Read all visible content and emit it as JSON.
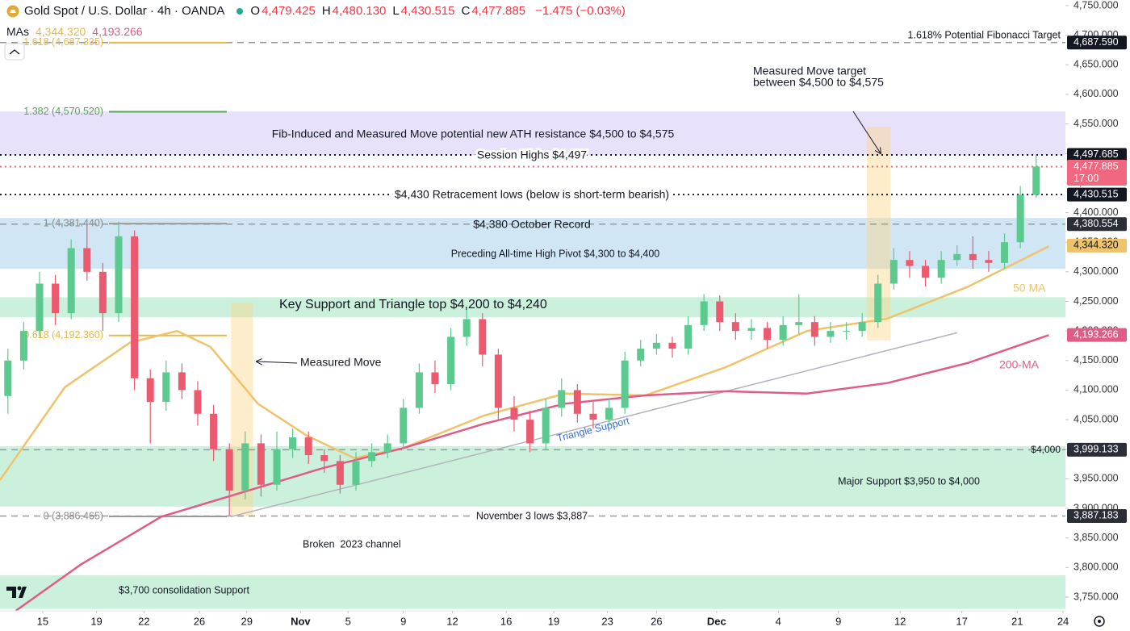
{
  "chart_data": {
    "type": "candlestick",
    "title": "Gold Spot / U.S. Dollar · 4h · OANDA",
    "ohlc_legend": [
      {
        "name": "O",
        "value": 4479.425,
        "label": "4,479.425"
      },
      {
        "name": "H",
        "value": 4480.13,
        "label": "4,480.130"
      },
      {
        "name": "L",
        "value": 4430.515,
        "label": "4,430.515"
      },
      {
        "name": "C",
        "value": 4477.885,
        "label": "4,477.885"
      }
    ],
    "change": {
      "value": -1.475,
      "label": "−1.475 (−0.03%)"
    },
    "ma_legend": {
      "name": "MAs",
      "items": [
        {
          "value": 4344.32,
          "label": "4,344.320",
          "color": "#e8b84a"
        },
        {
          "value": 4193.266,
          "label": "4,193.266",
          "color": "#e05c87"
        }
      ]
    },
    "up_color": "#5cc98e",
    "down_color": "#ec5a70",
    "open": [
      4090,
      4150,
      4200,
      4280,
      4230,
      4340,
      4300,
      4230,
      4360,
      4120,
      4080,
      4130,
      4100,
      4060,
      4000,
      3930,
      4010,
      3940,
      4000,
      4020,
      3990,
      3980,
      3940,
      3980,
      3995,
      4010,
      4070,
      4130,
      4110,
      4190,
      4220,
      4160,
      4070,
      4050,
      4010,
      4070,
      4100,
      4060,
      4050,
      4070,
      4150,
      4170,
      4180,
      4170,
      4210,
      4250,
      4215,
      4200,
      4205,
      4185,
      4210,
      4215,
      4190,
      4200,
      4200,
      4215,
      4280,
      4320,
      4310,
      4290,
      4320,
      4330,
      4320,
      4315,
      4350,
      4430
    ],
    "high": [
      4170,
      4215,
      4300,
      4295,
      4355,
      4381,
      4315,
      4385,
      4370,
      4135,
      4150,
      4145,
      4115,
      4075,
      4010,
      4030,
      4025,
      4030,
      4035,
      4030,
      4000,
      3990,
      3995,
      4010,
      4025,
      4085,
      4145,
      4150,
      4205,
      4240,
      4230,
      4170,
      4090,
      4065,
      4085,
      4120,
      4110,
      4080,
      4085,
      4165,
      4185,
      4195,
      4190,
      4225,
      4262,
      4260,
      4230,
      4220,
      4215,
      4225,
      4262,
      4225,
      4215,
      4215,
      4230,
      4295,
      4340,
      4335,
      4320,
      4335,
      4345,
      4360,
      4335,
      4365,
      4445,
      4498
    ],
    "low": [
      4060,
      4135,
      4190,
      4210,
      4220,
      4285,
      4200,
      4215,
      4100,
      4010,
      4065,
      4085,
      4040,
      3980,
      3887,
      3915,
      3920,
      3930,
      3985,
      3975,
      3960,
      3925,
      3930,
      3970,
      3985,
      4000,
      4060,
      4095,
      4100,
      4175,
      4140,
      4050,
      4030,
      3995,
      4000,
      4055,
      4045,
      4035,
      4040,
      4060,
      4140,
      4160,
      4155,
      4160,
      4200,
      4200,
      4185,
      4185,
      4170,
      4175,
      4195,
      4175,
      4180,
      4185,
      4190,
      4205,
      4270,
      4290,
      4275,
      4280,
      4310,
      4305,
      4300,
      4305,
      4340,
      4425
    ],
    "close": [
      4150,
      4200,
      4280,
      4230,
      4340,
      4300,
      4230,
      4360,
      4120,
      4080,
      4130,
      4100,
      4060,
      4000,
      3930,
      4010,
      3940,
      4000,
      4020,
      3990,
      3980,
      3940,
      3980,
      3995,
      4010,
      4070,
      4130,
      4110,
      4190,
      4220,
      4160,
      4070,
      4050,
      4010,
      4070,
      4100,
      4060,
      4050,
      4070,
      4150,
      4170,
      4180,
      4170,
      4210,
      4250,
      4215,
      4200,
      4205,
      4185,
      4210,
      4215,
      4190,
      4200,
      4200,
      4215,
      4280,
      4320,
      4310,
      4290,
      4320,
      4330,
      4320,
      4315,
      4350,
      4430,
      4478
    ],
    "moving_averages": [
      {
        "name": "50 MA",
        "color": "#eec36a",
        "x": [
          0,
          4.1,
          8.2,
          11.2,
          13.3,
          16.3,
          19.4,
          22.4,
          25.5,
          30.6,
          35.7,
          40.8,
          45.9,
          51,
          56.1,
          61.2,
          66.3
        ],
        "values": [
          3948,
          4105,
          4180,
          4200,
          4173,
          4077,
          4023,
          3985,
          4002,
          4057,
          4094,
          4091,
          4139,
          4200,
          4221,
          4275,
          4343
        ]
      },
      {
        "name": "200-MA",
        "color": "#e05c87",
        "x": [
          1,
          5.1,
          10.2,
          15.3,
          20.4,
          25.5,
          30.6,
          35.7,
          40.8,
          45.9,
          51,
          56.1,
          61.2,
          66.3
        ],
        "values": [
          3727,
          3805,
          3886,
          3927,
          3968,
          4002,
          4043,
          4077,
          4091,
          4098,
          4094,
          4112,
          4146,
          4193
        ]
      }
    ],
    "zones": [
      {
        "low": 4497,
        "high": 4571,
        "color": "rgba(190,170,245,0.35)"
      },
      {
        "low": 4305,
        "high": 4391,
        "color": "rgba(150,200,230,0.45)"
      },
      {
        "low": 4223,
        "high": 4257,
        "color": "rgba(140,225,180,0.45)"
      },
      {
        "low": 3903,
        "high": 4005,
        "color": "rgba(140,225,180,0.45)"
      },
      {
        "low": 3730,
        "high": 3787,
        "color": "rgba(140,225,180,0.45)"
      }
    ],
    "measured_moves": [
      {
        "x": [
          14.6,
          16.0
        ],
        "low": 3886,
        "high": 4248
      },
      {
        "x": [
          54.8,
          56.3
        ],
        "low": 4184,
        "high": 4545
      }
    ],
    "triangle_support": {
      "x": [
        14.6,
        60.5
      ],
      "values": [
        3886,
        4197
      ]
    },
    "fib_levels": [
      {
        "value": 4687.335,
        "label": "1.618 (4,687.335)",
        "color": "#e8b84a"
      },
      {
        "value": 4570.52,
        "label": "1.382 (4,570.520)",
        "color": "#5aa55a"
      },
      {
        "value": 4381.44,
        "label": "1 (4,381.440)",
        "color": "#9a9a9a"
      },
      {
        "value": 4192.36,
        "label": "0.618 (4,192.360)",
        "color": "#e8b84a"
      },
      {
        "value": 3886.465,
        "label": "0 (3,886.465)",
        "color": "#9a9a9a"
      }
    ],
    "price_labels": [
      {
        "value": 4687.59,
        "label": "4,687.590",
        "bg": "#131722",
        "fg": "#ffffff",
        "line": "dashed",
        "line_color": "#999999"
      },
      {
        "value": 4497.685,
        "label": "4,497.685",
        "bg": "#131722",
        "fg": "#ffffff",
        "line": "dotted",
        "line_color": "#131722"
      },
      {
        "value": 4477.885,
        "label": "4,477.885",
        "sublabel": "17:00",
        "bg": "#f0677f",
        "fg": "#ffffff",
        "line": "dotted",
        "line_color": "#f0677f"
      },
      {
        "value": 4430.515,
        "label": "4,430.515",
        "bg": "#131722",
        "fg": "#ffffff",
        "line": "dotted",
        "line_color": "#131722"
      },
      {
        "value": 4380.554,
        "label": "4,380.554",
        "bg": "#2a2e39",
        "fg": "#ffffff",
        "line": "dashed",
        "line_color": "#999999"
      },
      {
        "value": 4344.32,
        "label": "4,344.320",
        "bg": "#eec36a",
        "fg": "#131722"
      },
      {
        "value": 4193.266,
        "label": "4,193.266",
        "bg": "#e05c87",
        "fg": "#ffffff"
      },
      {
        "value": 3999.133,
        "label": "3,999.133",
        "bg": "#2a2e39",
        "fg": "#ffffff",
        "line": "dashed",
        "line_color": "#999999"
      },
      {
        "value": 3887.183,
        "label": "3,887.183",
        "bg": "#2a2e39",
        "fg": "#ffffff",
        "line": "dashed",
        "line_color": "#999999"
      }
    ],
    "annotations": [
      "1.618% Potential Fibonacci Target",
      "Measured Move target",
      "between $4,500 to $4,575",
      "Fib-Induced and Measured Move potential new ATH resistance $4,500 to $4,575",
      "Session Highs $4,497",
      "$4,430 Retracement lows (below is short-term bearish)",
      "$4,380 October Record",
      "Preceding All-time High Pivot $4,300 to $4,400",
      "Key Support and Triangle top $4,200 to $4,240",
      "Measured Move",
      "Triangle Support",
      "$4,000",
      "Major Support $3,950 to $4,000",
      "November 3 lows $3,887",
      "Broken  2023 channel",
      "$3,700 consolidation Support",
      "50 MA",
      "200-MA"
    ],
    "xlim": [
      0,
      67.35
    ],
    "xticks": [
      {
        "value": 2.7,
        "label": "15"
      },
      {
        "value": 6.1,
        "label": "19"
      },
      {
        "value": 9.1,
        "label": "22"
      },
      {
        "value": 12.6,
        "label": "26"
      },
      {
        "value": 15.6,
        "label": "29"
      },
      {
        "value": 19,
        "label": "Nov"
      },
      {
        "value": 22,
        "label": "5"
      },
      {
        "value": 25.5,
        "label": "9"
      },
      {
        "value": 28.6,
        "label": "12"
      },
      {
        "value": 32,
        "label": "16"
      },
      {
        "value": 35,
        "label": "19"
      },
      {
        "value": 38.4,
        "label": "23"
      },
      {
        "value": 41.5,
        "label": "26"
      },
      {
        "value": 45.3,
        "label": "Dec"
      },
      {
        "value": 49.2,
        "label": "4"
      },
      {
        "value": 53,
        "label": "9"
      },
      {
        "value": 56.9,
        "label": "12"
      },
      {
        "value": 60.8,
        "label": "17"
      },
      {
        "value": 64.3,
        "label": "21"
      },
      {
        "value": 67.2,
        "label": "24"
      }
    ],
    "ylim": [
      3750,
      4750
    ],
    "yticks": [
      {
        "value": 4750,
        "label": "4,750.000"
      },
      {
        "value": 4700,
        "label": "4,700.000"
      },
      {
        "value": 4650,
        "label": "4,650.000"
      },
      {
        "value": 4600,
        "label": "4,600.000"
      },
      {
        "value": 4550,
        "label": "4,550.000"
      },
      {
        "value": 4500,
        "label": "4,500.000"
      },
      {
        "value": 4450,
        "label": "4,450.000"
      },
      {
        "value": 4400,
        "label": "4,400.000"
      },
      {
        "value": 4350,
        "label": "4,350.000"
      },
      {
        "value": 4300,
        "label": "4,300.000"
      },
      {
        "value": 4250,
        "label": "4,250.000"
      },
      {
        "value": 4200,
        "label": "4,200.000"
      },
      {
        "value": 4150,
        "label": "4,150.000"
      },
      {
        "value": 4100,
        "label": "4,100.000"
      },
      {
        "value": 4050,
        "label": "4,050.000"
      },
      {
        "value": 4000,
        "label": "4,000.000"
      },
      {
        "value": 3950,
        "label": "3,950.000"
      },
      {
        "value": 3900,
        "label": "3,900.000"
      },
      {
        "value": 3850,
        "label": "3,850.000"
      },
      {
        "value": 3800,
        "label": "3,800.000"
      },
      {
        "value": 3750,
        "label": "3,750.000"
      }
    ],
    "grid": false
  }
}
